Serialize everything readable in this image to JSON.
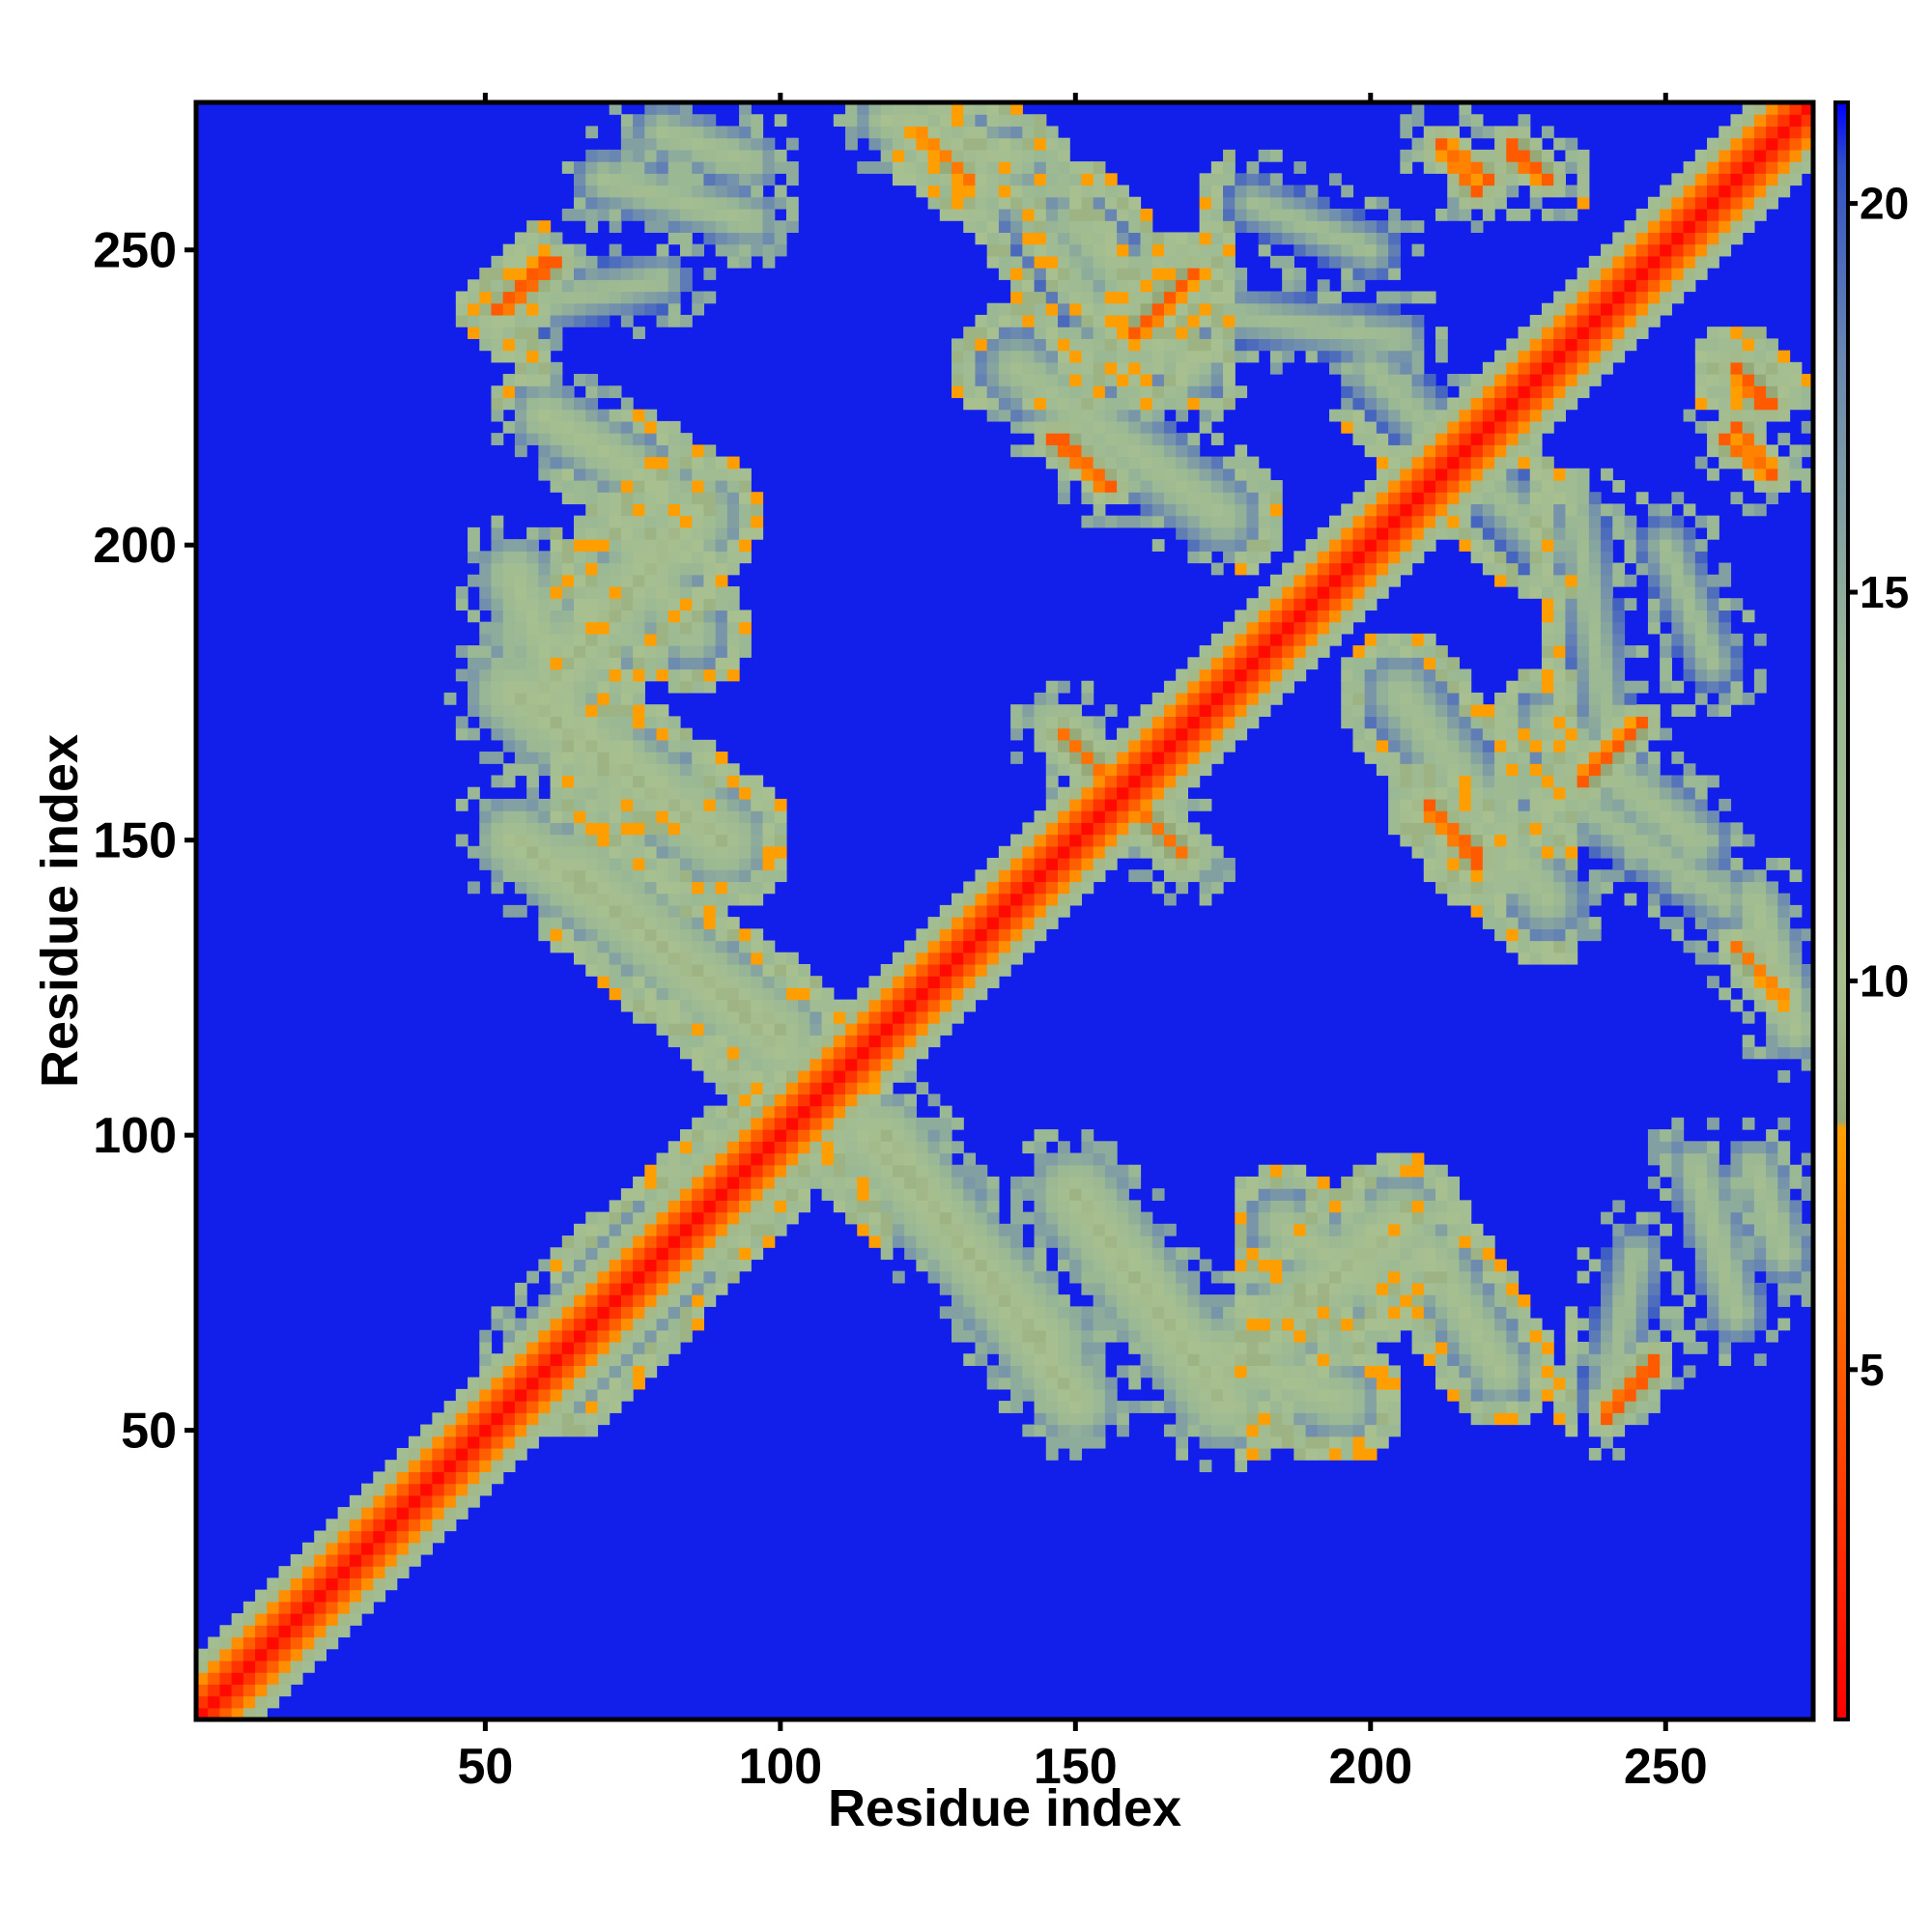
{
  "chart_data": {
    "type": "heatmap",
    "title": "",
    "xlabel": "Residue index",
    "ylabel": "Residue index",
    "xlim": [
      1,
      275
    ],
    "ylim": [
      1,
      275
    ],
    "x_ticks": [
      50,
      100,
      150,
      200,
      250
    ],
    "y_ticks": [
      50,
      100,
      150,
      200,
      250
    ],
    "colorbar": {
      "ticks": [
        5,
        10,
        15,
        20
      ],
      "range": [
        0.5,
        21.3
      ],
      "colors": [
        {
          "value": 0.5,
          "color": "#ff0000"
        },
        {
          "value": 5.0,
          "color": "#ff5a00"
        },
        {
          "value": 8.1,
          "color": "#ffa000"
        },
        {
          "value": 8.2,
          "color": "#96a878"
        },
        {
          "value": 10.0,
          "color": "#a8c090"
        },
        {
          "value": 14.0,
          "color": "#9ab894"
        },
        {
          "value": 18.0,
          "color": "#6a88b0"
        },
        {
          "value": 20.5,
          "color": "#3050c8"
        },
        {
          "value": 21.3,
          "color": "#0000ff"
        }
      ]
    },
    "background_value": 21,
    "diagonal": {
      "from": 1,
      "to": 275,
      "value": 1,
      "halo_width": 8
    },
    "contact_segments": [
      {
        "from": [
          52,
          240
        ],
        "to": [
          60,
          248
        ],
        "value": 5,
        "width": 4
      },
      {
        "from": [
          162,
          237
        ],
        "to": [
          170,
          246
        ],
        "value": 5,
        "width": 5
      },
      {
        "from": [
          148,
          218
        ],
        "to": [
          155,
          210
        ],
        "value": 5,
        "width": 5
      },
      {
        "from": [
          123,
          270
        ],
        "to": [
          132,
          262
        ],
        "value": 6,
        "width": 6
      },
      {
        "from": [
          212,
          268
        ],
        "to": [
          218,
          260
        ],
        "value": 5,
        "width": 5
      },
      {
        "from": [
          224,
          268
        ],
        "to": [
          230,
          262
        ],
        "value": 5,
        "width": 5
      },
      {
        "from": [
          262,
          230
        ],
        "to": [
          266,
          224
        ],
        "value": 5,
        "width": 5
      },
      {
        "from": [
          262,
          220
        ],
        "to": [
          268,
          212
        ],
        "value": 5,
        "width": 5
      },
      {
        "from": [
          148,
          168
        ],
        "to": [
          168,
          148
        ],
        "value": 6,
        "width": 8
      },
      {
        "from": [
          210,
          156
        ],
        "to": [
          218,
          146
        ],
        "value": 5,
        "width": 5
      },
      {
        "from": [
          236,
          160
        ],
        "to": [
          246,
          170
        ],
        "value": 5,
        "width": 5
      },
      {
        "from": [
          240,
          53
        ],
        "to": [
          248,
          62
        ],
        "value": 5,
        "width": 5
      },
      {
        "from": [
          55,
          195
        ],
        "to": [
          65,
          170
        ],
        "value": 10,
        "width": 12
      },
      {
        "from": [
          65,
          170
        ],
        "to": [
          80,
          160
        ],
        "value": 10,
        "width": 10
      },
      {
        "from": [
          75,
          200
        ],
        "to": [
          85,
          185
        ],
        "value": 10,
        "width": 10
      },
      {
        "from": [
          55,
          150
        ],
        "to": [
          100,
          118
        ],
        "value": 9,
        "width": 12
      },
      {
        "from": [
          62,
          60
        ],
        "to": [
          95,
          95
        ],
        "value": 9,
        "width": 14
      },
      {
        "from": [
          115,
          100
        ],
        "to": [
          145,
          65
        ],
        "value": 9,
        "width": 14
      },
      {
        "from": [
          150,
          90
        ],
        "to": [
          175,
          55
        ],
        "value": 9,
        "width": 14
      },
      {
        "from": [
          175,
          60
        ],
        "to": [
          205,
          85
        ],
        "value": 9,
        "width": 14
      },
      {
        "from": [
          210,
          80
        ],
        "to": [
          222,
          60
        ],
        "value": 10,
        "width": 10
      },
      {
        "from": [
          255,
          95
        ],
        "to": [
          262,
          70
        ],
        "value": 11,
        "width": 8
      },
      {
        "from": [
          265,
          140
        ],
        "to": [
          272,
          118
        ],
        "value": 10,
        "width": 8
      },
      {
        "from": [
          230,
          170
        ],
        "to": [
          255,
          150
        ],
        "value": 11,
        "width": 10
      },
      {
        "from": [
          140,
          230
        ],
        "to": [
          175,
          205
        ],
        "value": 11,
        "width": 12
      },
      {
        "from": [
          80,
          270
        ],
        "to": [
          95,
          265
        ],
        "value": 11,
        "width": 8
      },
      {
        "from": [
          55,
          240
        ],
        "to": [
          80,
          245
        ],
        "value": 12,
        "width": 8
      },
      {
        "from": [
          170,
          240
        ],
        "to": [
          205,
          235
        ],
        "value": 12,
        "width": 8
      },
      {
        "from": [
          140,
          260
        ],
        "to": [
          160,
          230
        ],
        "value": 12,
        "width": 10
      },
      {
        "from": [
          205,
          225
        ],
        "to": [
          230,
          200
        ],
        "value": 12,
        "width": 10
      },
      {
        "from": [
          250,
          200
        ],
        "to": [
          258,
          180
        ],
        "value": 12,
        "width": 8
      }
    ]
  }
}
